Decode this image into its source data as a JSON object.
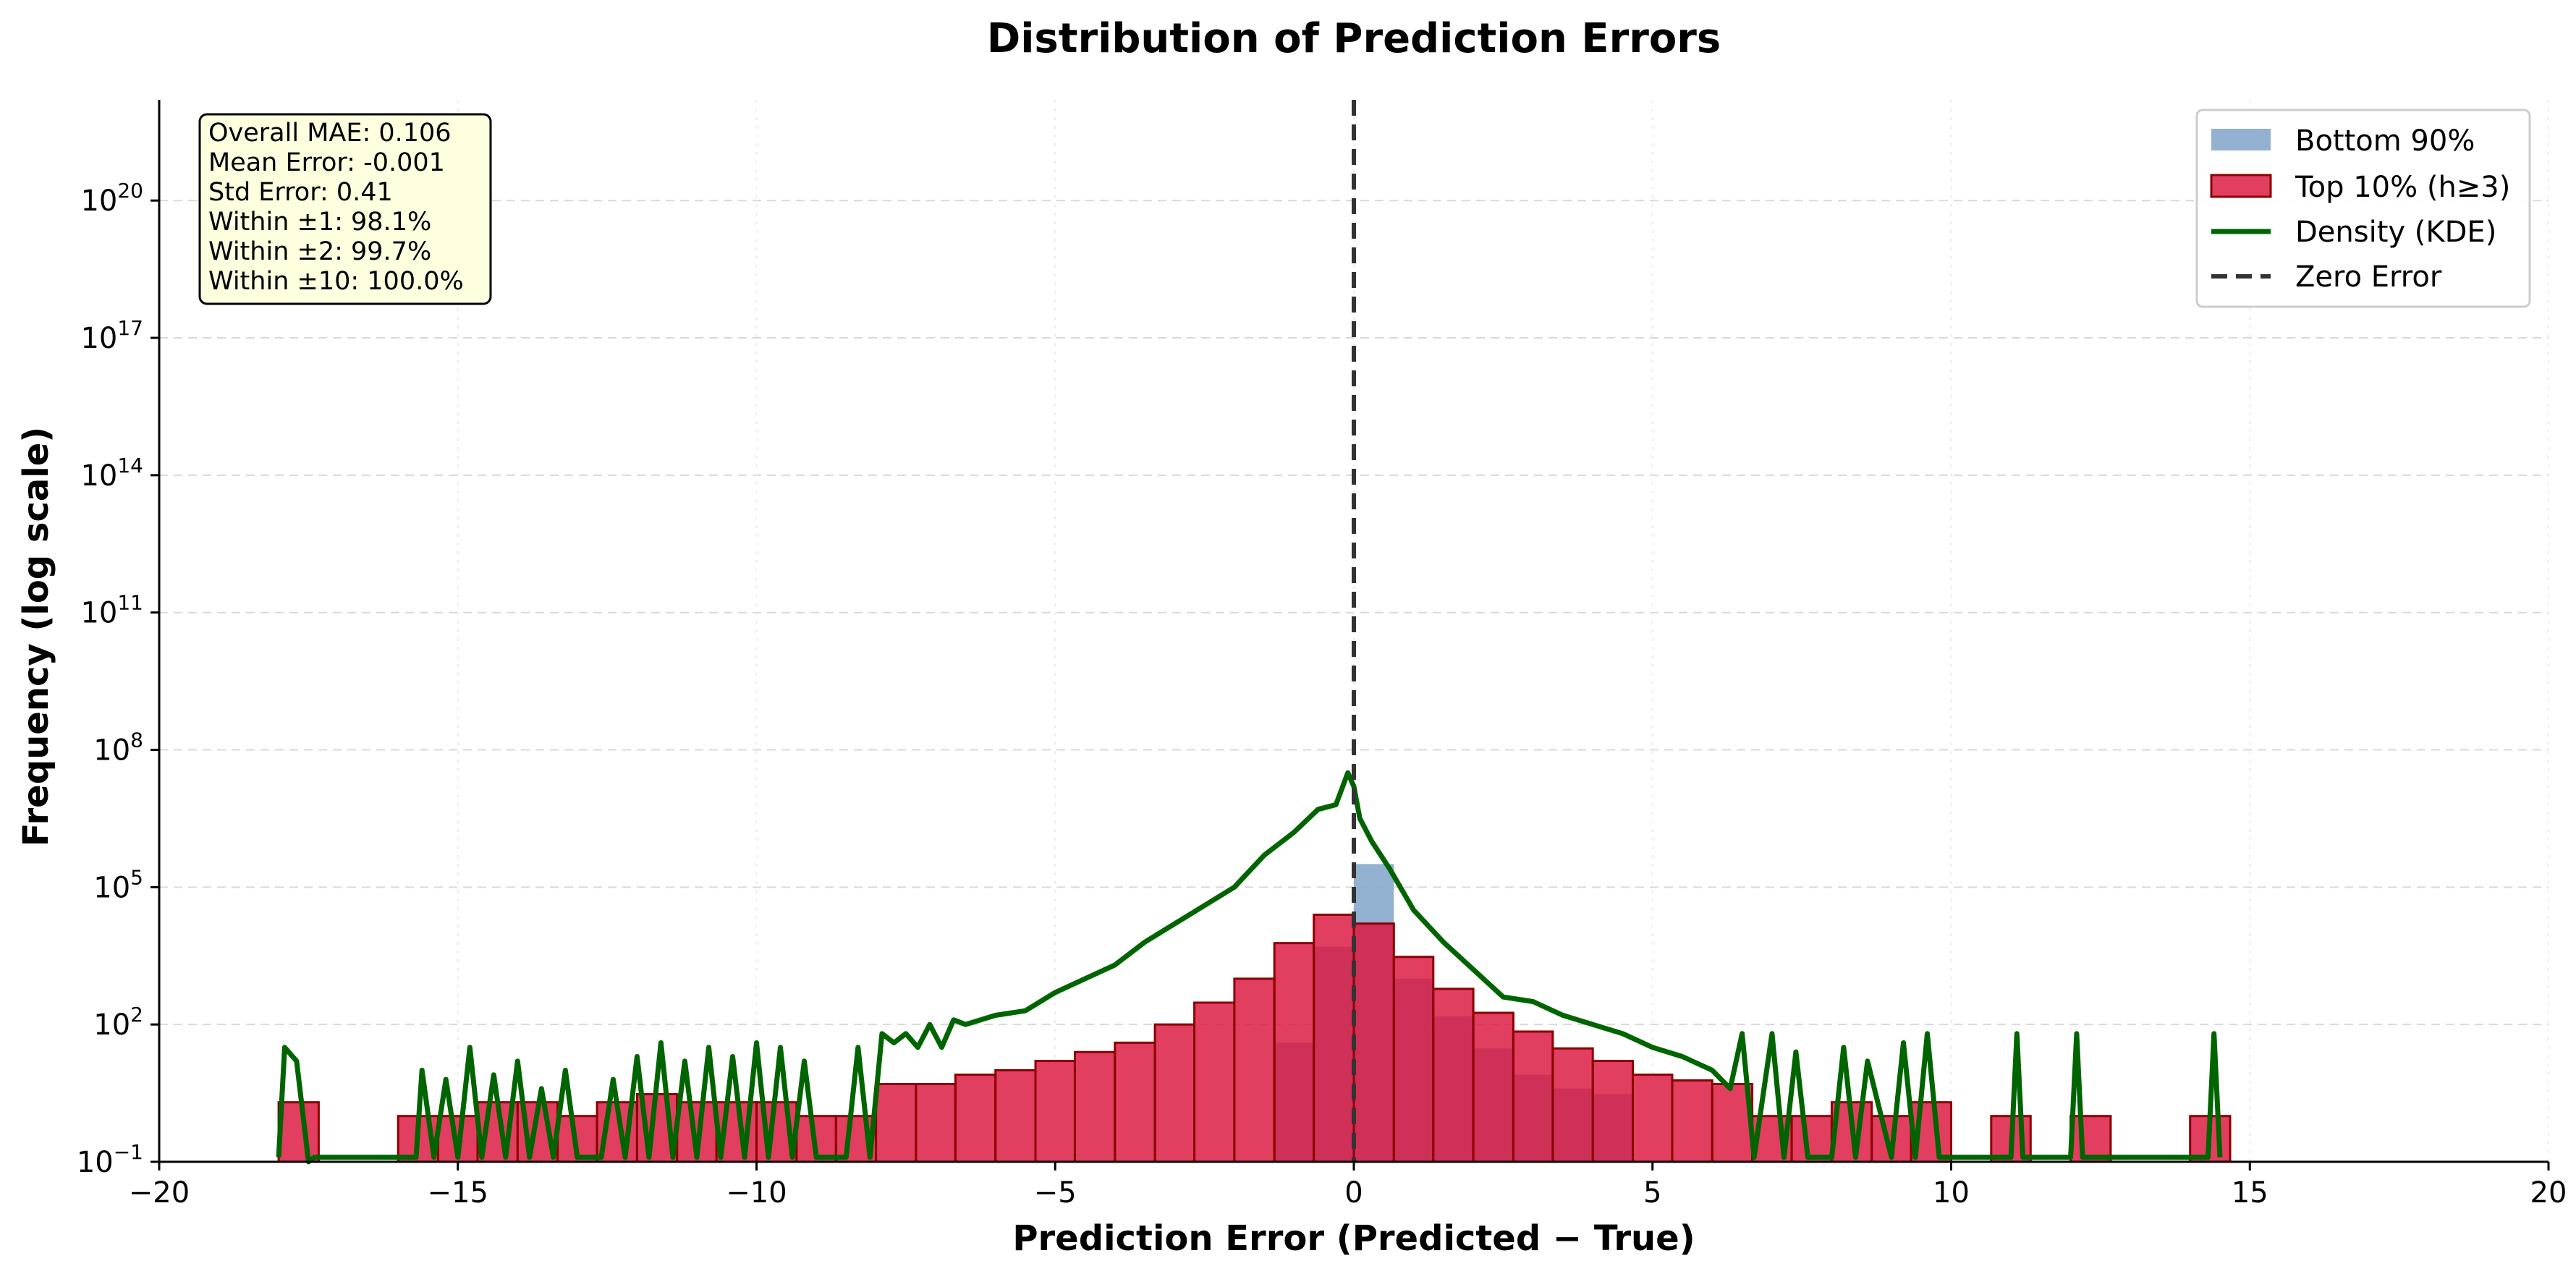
{
  "chart_data": {
    "type": "bar",
    "title": "Distribution of Prediction Errors",
    "xlabel": "Prediction Error (Predicted − True)",
    "ylabel": "Frequency (log scale)",
    "y_scale": "log",
    "xlim": [
      -20,
      20
    ],
    "ylim_log10": [
      -1,
      22.2
    ],
    "x_ticks": [
      -20,
      -15,
      -10,
      -5,
      0,
      5,
      10,
      15,
      20
    ],
    "x_tick_labels": [
      "−20",
      "−15",
      "−10",
      "−5",
      "0",
      "5",
      "10",
      "15",
      "20"
    ],
    "y_ticks": [
      {
        "base": "10",
        "exp": "−1",
        "log": -1
      },
      {
        "base": "10",
        "exp": "2",
        "log": 2
      },
      {
        "base": "10",
        "exp": "5",
        "log": 5
      },
      {
        "base": "10",
        "exp": "8",
        "log": 8
      },
      {
        "base": "10",
        "exp": "11",
        "log": 11
      },
      {
        "base": "10",
        "exp": "14",
        "log": 14
      },
      {
        "base": "10",
        "exp": "17",
        "log": 17
      },
      {
        "base": "10",
        "exp": "20",
        "log": 20
      }
    ],
    "grid": true,
    "legend_position": "top-right",
    "colors": {
      "bottom90": "#87a9cc",
      "top10_fill": "#dc143c",
      "top10_edge": "#8b0000",
      "kde": "#006400",
      "zero_line": "#333333"
    },
    "series": [
      {
        "name": "Bottom 90%",
        "bins": [
          {
            "x0": -1.33,
            "x1": -0.67,
            "value": 40
          },
          {
            "x0": -0.67,
            "x1": 0.0,
            "value": 5000
          },
          {
            "x0": 0.0,
            "x1": 0.67,
            "value": 320000
          },
          {
            "x0": 0.67,
            "x1": 1.33,
            "value": 1000
          },
          {
            "x0": 1.33,
            "x1": 2.0,
            "value": 150
          },
          {
            "x0": 2.0,
            "x1": 2.67,
            "value": 30
          },
          {
            "x0": 2.67,
            "x1": 3.33,
            "value": 8
          },
          {
            "x0": 3.33,
            "x1": 4.0,
            "value": 4
          },
          {
            "x0": 4.0,
            "x1": 4.67,
            "value": 3
          }
        ]
      },
      {
        "name": "Top 10% (h≥3)",
        "bins": [
          {
            "x0": -18.0,
            "x1": -17.33,
            "value": 2
          },
          {
            "x0": -16.0,
            "x1": -15.33,
            "value": 1
          },
          {
            "x0": -15.33,
            "x1": -14.67,
            "value": 1
          },
          {
            "x0": -14.67,
            "x1": -14.0,
            "value": 2
          },
          {
            "x0": -14.0,
            "x1": -13.33,
            "value": 2
          },
          {
            "x0": -13.33,
            "x1": -12.67,
            "value": 1
          },
          {
            "x0": -12.67,
            "x1": -12.0,
            "value": 2
          },
          {
            "x0": -12.0,
            "x1": -11.33,
            "value": 3
          },
          {
            "x0": -11.33,
            "x1": -10.67,
            "value": 2
          },
          {
            "x0": -10.67,
            "x1": -10.0,
            "value": 2
          },
          {
            "x0": -10.0,
            "x1": -9.33,
            "value": 2
          },
          {
            "x0": -9.33,
            "x1": -8.67,
            "value": 1
          },
          {
            "x0": -8.67,
            "x1": -8.0,
            "value": 1
          },
          {
            "x0": -8.0,
            "x1": -7.33,
            "value": 5
          },
          {
            "x0": -7.33,
            "x1": -6.67,
            "value": 5
          },
          {
            "x0": -6.67,
            "x1": -6.0,
            "value": 8
          },
          {
            "x0": -6.0,
            "x1": -5.33,
            "value": 10
          },
          {
            "x0": -5.33,
            "x1": -4.67,
            "value": 16
          },
          {
            "x0": -4.67,
            "x1": -4.0,
            "value": 25
          },
          {
            "x0": -4.0,
            "x1": -3.33,
            "value": 40
          },
          {
            "x0": -3.33,
            "x1": -2.67,
            "value": 100
          },
          {
            "x0": -2.67,
            "x1": -2.0,
            "value": 300
          },
          {
            "x0": -2.0,
            "x1": -1.33,
            "value": 1000
          },
          {
            "x0": -1.33,
            "x1": -0.67,
            "value": 6000
          },
          {
            "x0": -0.67,
            "x1": 0.0,
            "value": 25000
          },
          {
            "x0": 0.0,
            "x1": 0.67,
            "value": 16000
          },
          {
            "x0": 0.67,
            "x1": 1.33,
            "value": 3000
          },
          {
            "x0": 1.33,
            "x1": 2.0,
            "value": 600
          },
          {
            "x0": 2.0,
            "x1": 2.67,
            "value": 180
          },
          {
            "x0": 2.67,
            "x1": 3.33,
            "value": 70
          },
          {
            "x0": 3.33,
            "x1": 4.0,
            "value": 30
          },
          {
            "x0": 4.0,
            "x1": 4.67,
            "value": 16
          },
          {
            "x0": 4.67,
            "x1": 5.33,
            "value": 8
          },
          {
            "x0": 5.33,
            "x1": 6.0,
            "value": 6
          },
          {
            "x0": 6.0,
            "x1": 6.67,
            "value": 5
          },
          {
            "x0": 6.67,
            "x1": 7.33,
            "value": 1
          },
          {
            "x0": 7.33,
            "x1": 8.0,
            "value": 1
          },
          {
            "x0": 8.0,
            "x1": 8.67,
            "value": 2
          },
          {
            "x0": 8.67,
            "x1": 9.33,
            "value": 1
          },
          {
            "x0": 9.33,
            "x1": 10.0,
            "value": 2
          },
          {
            "x0": 10.67,
            "x1": 11.33,
            "value": 1
          },
          {
            "x0": 12.0,
            "x1": 12.67,
            "value": 1
          },
          {
            "x0": 14.0,
            "x1": 14.67,
            "value": 1
          }
        ]
      },
      {
        "name": "Density (KDE)",
        "style": "line",
        "x": [
          -18.0,
          -17.9,
          -17.7,
          -17.5,
          -17.4,
          -15.7,
          -15.6,
          -15.4,
          -15.2,
          -15.0,
          -14.8,
          -14.6,
          -14.4,
          -14.2,
          -14.0,
          -13.8,
          -13.6,
          -13.4,
          -13.2,
          -13.0,
          -12.6,
          -12.4,
          -12.2,
          -12.0,
          -11.8,
          -11.6,
          -11.4,
          -11.2,
          -11.0,
          -10.8,
          -10.6,
          -10.4,
          -10.2,
          -10.0,
          -9.8,
          -9.6,
          -9.4,
          -9.2,
          -9.0,
          -8.5,
          -8.3,
          -8.1,
          -7.9,
          -7.7,
          -7.5,
          -7.3,
          -7.1,
          -6.9,
          -6.7,
          -6.5,
          -6.0,
          -5.5,
          -5.0,
          -4.5,
          -4.0,
          -3.5,
          -3.0,
          -2.5,
          -2.0,
          -1.5,
          -1.0,
          -0.6,
          -0.3,
          -0.1,
          0.0,
          0.1,
          0.3,
          0.6,
          1.0,
          1.5,
          2.0,
          2.5,
          3.0,
          3.5,
          4.0,
          4.5,
          5.0,
          5.5,
          6.0,
          6.3,
          6.5,
          6.7,
          7.0,
          7.2,
          7.4,
          7.6,
          8.0,
          8.2,
          8.4,
          8.6,
          9.0,
          9.2,
          9.4,
          9.6,
          9.8,
          10.0,
          11.0,
          11.1,
          11.2,
          12.0,
          12.1,
          12.2,
          14.3,
          14.4,
          14.5
        ],
        "values": [
          -0.9,
          1.5,
          1.2,
          -1.0,
          -0.9,
          -0.9,
          1.0,
          -0.9,
          0.8,
          -0.9,
          1.5,
          -0.9,
          0.9,
          -0.9,
          1.2,
          -0.9,
          0.6,
          -0.9,
          1.0,
          -0.9,
          -0.9,
          0.8,
          -0.9,
          1.3,
          -0.9,
          1.6,
          -0.9,
          1.2,
          -0.9,
          1.5,
          -0.9,
          1.3,
          -0.9,
          1.6,
          -0.9,
          1.5,
          -0.9,
          1.2,
          -0.9,
          -0.9,
          1.5,
          -0.9,
          1.8,
          1.6,
          1.8,
          1.5,
          2.0,
          1.5,
          2.1,
          2.0,
          2.2,
          2.3,
          2.7,
          3.0,
          3.3,
          3.8,
          4.2,
          4.6,
          5.0,
          5.7,
          6.2,
          6.7,
          6.8,
          7.5,
          7.2,
          6.5,
          6.0,
          5.4,
          4.5,
          3.8,
          3.2,
          2.6,
          2.5,
          2.2,
          2.0,
          1.8,
          1.5,
          1.3,
          1.0,
          0.6,
          1.8,
          -0.9,
          1.8,
          -0.9,
          1.4,
          -0.9,
          -0.9,
          1.5,
          -0.9,
          1.2,
          -0.9,
          1.6,
          -0.9,
          1.8,
          -0.9,
          -0.9,
          -0.9,
          1.8,
          -0.9,
          -0.9,
          1.8,
          -0.9,
          -0.9,
          1.8,
          -0.9
        ]
      },
      {
        "name": "Zero Error",
        "style": "dashed-vline",
        "x": 0
      }
    ],
    "annotation_lines": [
      "Overall MAE: 0.106",
      "Mean Error: -0.001",
      "Std Error: 0.41",
      "Within ±1: 98.1%",
      "Within ±2: 99.7%",
      "Within ±10: 100.0%"
    ]
  }
}
